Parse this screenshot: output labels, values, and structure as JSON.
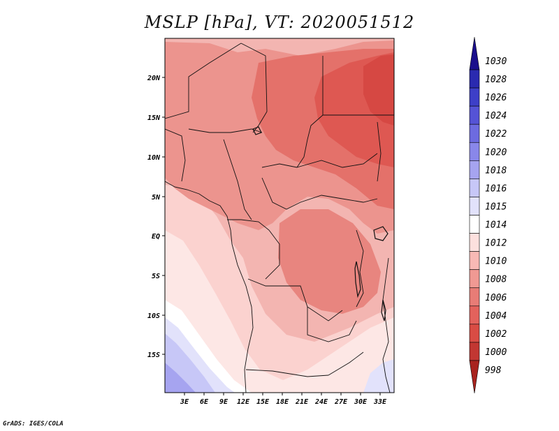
{
  "title": "MSLP [hPa], VT: 2020051512",
  "credit": "GrADS: IGES/COLA",
  "map": {
    "lon_labels": [
      "3E",
      "6E",
      "9E",
      "12E",
      "15E",
      "18E",
      "21E",
      "24E",
      "27E",
      "30E",
      "33E"
    ],
    "lat_labels": [
      "20N",
      "15N",
      "10N",
      "5N",
      "EQ",
      "5S",
      "10S",
      "15S"
    ]
  },
  "colorbar": {
    "levels": [
      "1030",
      "1028",
      "1026",
      "1024",
      "1022",
      "1020",
      "1018",
      "1016",
      "1015",
      "1014",
      "1012",
      "1010",
      "1008",
      "1006",
      "1004",
      "1002",
      "1000",
      "998"
    ],
    "colors": [
      "#1a0f8c",
      "#2a2ab0",
      "#3d3fc8",
      "#5553d6",
      "#6d6be0",
      "#8987ea",
      "#a6a4f0",
      "#c7c7f7",
      "#e2e2fb",
      "#ffffff",
      "#fde0de",
      "#f8b9b5",
      "#f09993",
      "#e87c76",
      "#e3625c",
      "#d94c44",
      "#c23732",
      "#a8231e"
    ]
  }
}
